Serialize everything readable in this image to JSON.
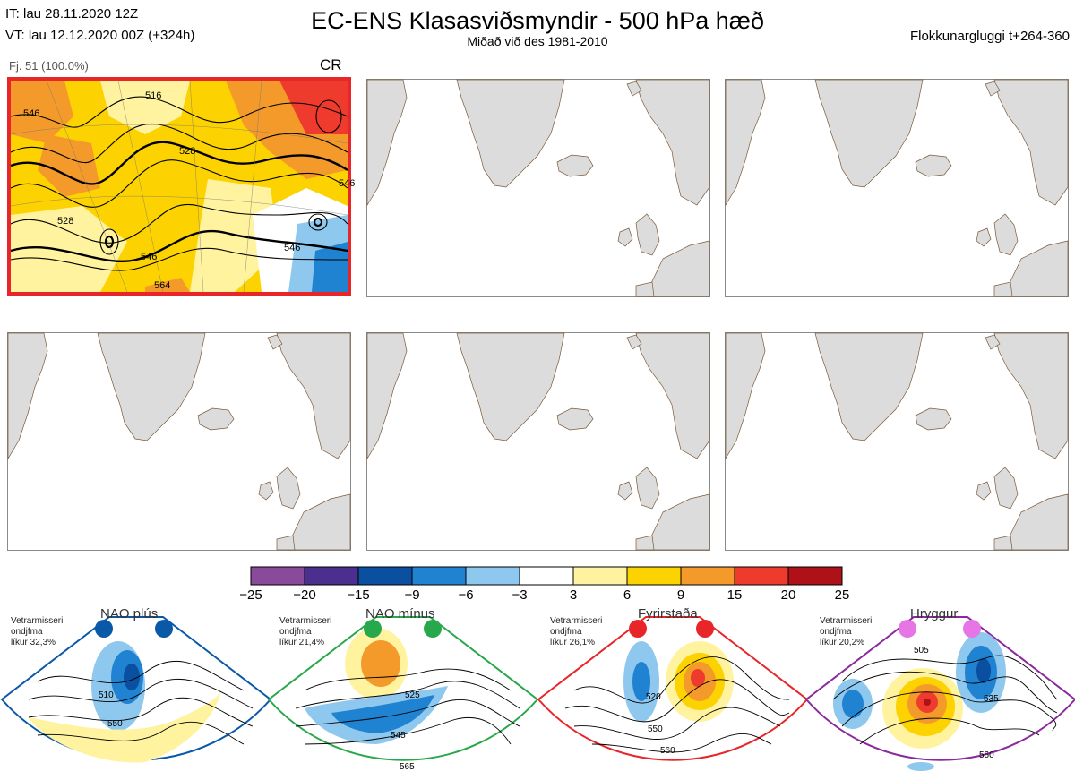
{
  "header": {
    "init_time": "IT: lau 28.11.2020 12Z",
    "valid_time": "VT: lau 12.12.2020 00Z  (+324h)",
    "title": "EC-ENS Klasasviðsmyndir - 500 hPa hæð",
    "subtitle": "Miðað við des 1981-2010",
    "window": "Flokkunargluggi t+264-360"
  },
  "panel1": {
    "member_label": "Fj. 51 (100.0%)",
    "regime_code": "CR",
    "contour_labels": [
      "546",
      "528",
      "546",
      "528",
      "516",
      "546",
      "564",
      "546"
    ]
  },
  "colorbar": {
    "ticks": [
      "−25",
      "−20",
      "−15",
      "−9",
      "−6",
      "−3",
      "3",
      "6",
      "9",
      "15",
      "20",
      "25"
    ],
    "colors": [
      "#8a4a9c",
      "#4a2f8f",
      "#0a4fa0",
      "#1f83d2",
      "#8fc8ee",
      "#ffffff",
      "#fff3a0",
      "#fcd200",
      "#f39a2a",
      "#ee3b2d",
      "#ae1218"
    ]
  },
  "regimes": [
    {
      "name": "NAO plús",
      "note_line1": "Vetrarmisseri",
      "note_line2": "ondjfma",
      "note_line3": "líkur 32,3%",
      "color": "#0a58a8",
      "iso": [
        "510",
        "550"
      ]
    },
    {
      "name": "NAO mínus",
      "note_line1": "Vetrarmisseri",
      "note_line2": "ondjfma",
      "note_line3": "líkur 21,4%",
      "color": "#27a84a",
      "iso": [
        "525",
        "545",
        "565"
      ]
    },
    {
      "name": "Fyrirstaða",
      "note_line1": "Vetrarmisseri",
      "note_line2": "ondjfma",
      "note_line3": "líkur 26,1%",
      "color": "#e8262a",
      "iso": [
        "520",
        "550",
        "560"
      ]
    },
    {
      "name": "Hryggur",
      "note_line1": "Vetrarmisseri",
      "note_line2": "ondjfma",
      "note_line3": "líkur 20,2%",
      "color": "#8a2a9c",
      "iso": [
        "505",
        "535",
        "560"
      ]
    }
  ]
}
